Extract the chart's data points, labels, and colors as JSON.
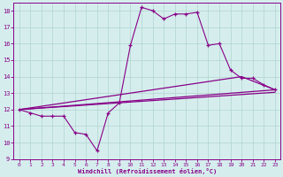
{
  "xlabel": "Windchill (Refroidissement éolien,°C)",
  "background_color": "#d5eeed",
  "grid_color": "#b0d4d0",
  "line_color": "#880088",
  "xlim": [
    -0.5,
    23.5
  ],
  "ylim": [
    9,
    18.5
  ],
  "xticks": [
    0,
    1,
    2,
    3,
    4,
    5,
    6,
    7,
    8,
    9,
    10,
    11,
    12,
    13,
    14,
    15,
    16,
    17,
    18,
    19,
    20,
    21,
    22,
    23
  ],
  "yticks": [
    9,
    10,
    11,
    12,
    13,
    14,
    15,
    16,
    17,
    18
  ],
  "line1_x": [
    0,
    1,
    2,
    3,
    4,
    5,
    6,
    7,
    8,
    9,
    10,
    11,
    12,
    13,
    14,
    15,
    16,
    17,
    18,
    19,
    20,
    21,
    22,
    23
  ],
  "line1_y": [
    12.0,
    11.8,
    11.6,
    11.6,
    11.6,
    10.6,
    10.5,
    9.5,
    11.8,
    12.4,
    15.9,
    18.2,
    18.0,
    17.5,
    17.8,
    17.8,
    17.9,
    15.9,
    16.0,
    14.4,
    13.9,
    13.9,
    13.5,
    13.2
  ],
  "line2_x": [
    0,
    23
  ],
  "line2_y": [
    12.0,
    13.2
  ],
  "line3_x": [
    0,
    23
  ],
  "line3_y": [
    12.0,
    13.05
  ],
  "line4_x": [
    0,
    20,
    23
  ],
  "line4_y": [
    12.0,
    14.0,
    13.2
  ]
}
